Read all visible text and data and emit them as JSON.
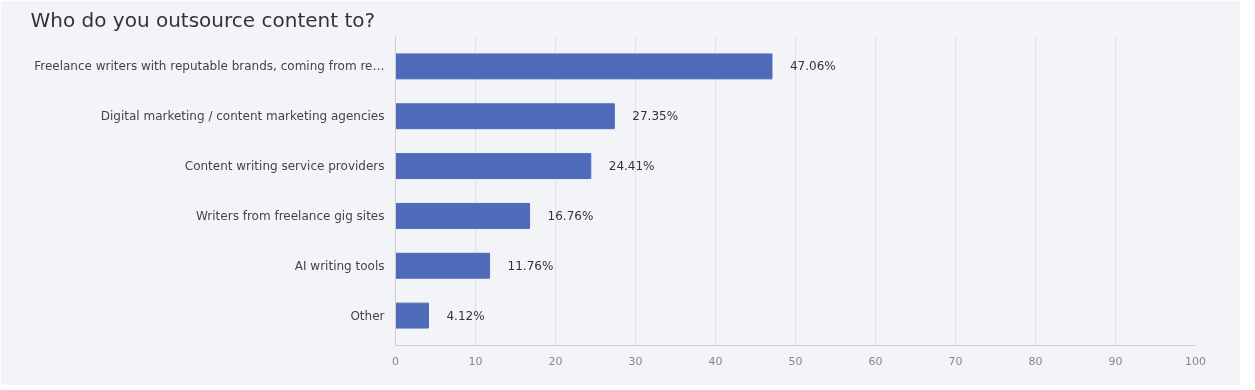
{
  "chart_data": {
    "type": "bar",
    "orientation": "horizontal",
    "title": "Who do you outsource content to?",
    "categories": [
      "Freelance writers with reputable brands, coming from re…",
      "Digital marketing / content marketing agencies",
      "Content writing service providers",
      "Writers from freelance gig sites",
      "AI writing tools",
      "Other"
    ],
    "values": [
      47.06,
      27.35,
      24.41,
      16.76,
      11.76,
      4.12
    ],
    "value_labels": [
      "47.06%",
      "27.35%",
      "24.41%",
      "16.76%",
      "11.76%",
      "4.12%"
    ],
    "color": "#4e6ab8",
    "xlim": [
      0,
      100
    ],
    "xticks": [
      0,
      10,
      20,
      30,
      40,
      50,
      60,
      70,
      80,
      90,
      100
    ],
    "grid": "x"
  }
}
